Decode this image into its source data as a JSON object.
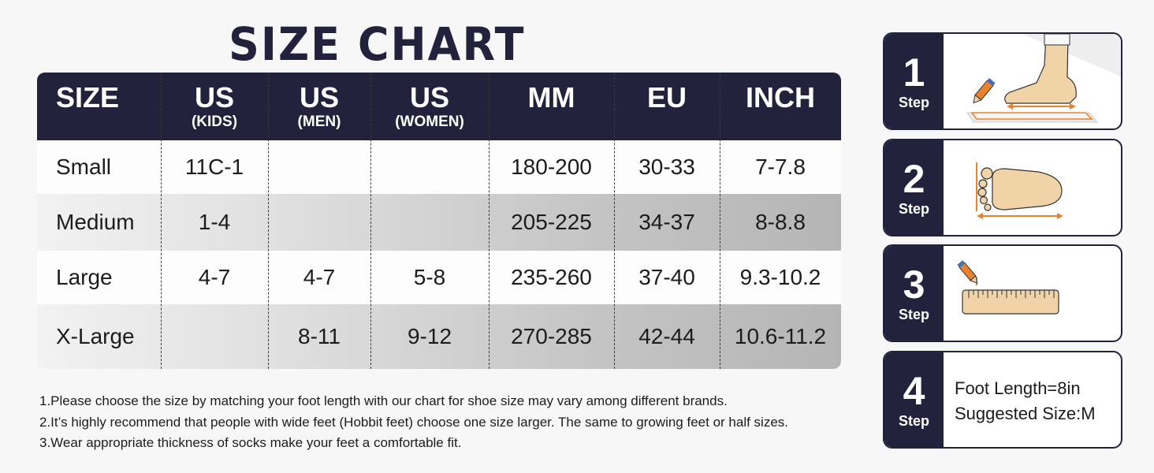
{
  "title": "SIZE CHART",
  "table": {
    "headers": [
      {
        "main": "SIZE",
        "sub": ""
      },
      {
        "main": "US",
        "sub": "(KIDS)"
      },
      {
        "main": "US",
        "sub": "(MEN)"
      },
      {
        "main": "US",
        "sub": "(WOMEN)"
      },
      {
        "main": "MM",
        "sub": ""
      },
      {
        "main": "EU",
        "sub": ""
      },
      {
        "main": "INCH",
        "sub": ""
      }
    ],
    "rows": [
      [
        "Small",
        "11C-1",
        "",
        "",
        "180-200",
        "30-33",
        "7-7.8"
      ],
      [
        "Medium",
        "1-4",
        "",
        "",
        "205-225",
        "34-37",
        "8-8.8"
      ],
      [
        "Large",
        "4-7",
        "4-7",
        "5-8",
        "235-260",
        "37-40",
        "9.3-10.2"
      ],
      [
        "X-Large",
        "",
        "8-11",
        "9-12",
        "270-285",
        "42-44",
        "10.6-11.2"
      ]
    ]
  },
  "notes": [
    "1.Please choose the size by matching your foot length with our chart for shoe size may vary among different brands.",
    "2.It’s highly recommend that people with wide feet (Hobbit feet) choose one size larger. The same to growing feet or half sizes.",
    "3.Wear appropriate thickness of socks make your feet a comfortable fit."
  ],
  "steps": [
    {
      "number": "1",
      "label": "Step",
      "icon": "foot-on-paper-icon"
    },
    {
      "number": "2",
      "label": "Step",
      "icon": "footprint-measure-icon"
    },
    {
      "number": "3",
      "label": "Step",
      "icon": "ruler-icon"
    },
    {
      "number": "4",
      "label": "Step",
      "icon": "",
      "line1": "Foot Length=8in",
      "line2": "Suggested Size:M"
    }
  ],
  "colors": {
    "navy": "#23223d",
    "orange": "#e8822e",
    "skin": "#f0d4a8"
  }
}
